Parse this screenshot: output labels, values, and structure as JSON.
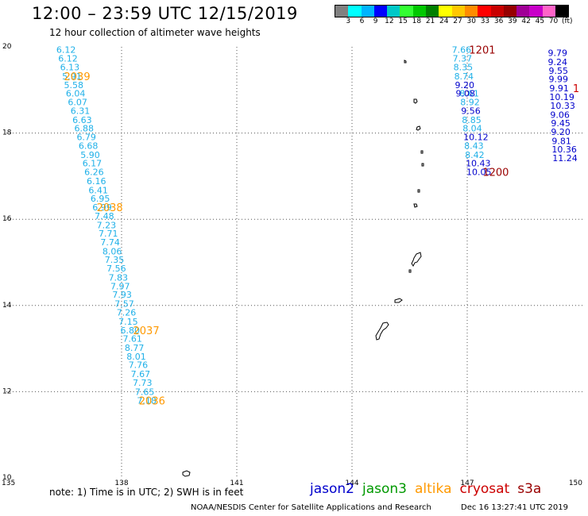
{
  "header": {
    "title": "12:00 – 23:59 UTC 12/15/2019",
    "subtitle": "12 hour collection of altimeter wave heights"
  },
  "legend": {
    "colors": [
      "#808080",
      "#00ffff",
      "#00b4ff",
      "#0000ff",
      "#00c8c8",
      "#32ff32",
      "#00c800",
      "#008000",
      "#ffff00",
      "#ffc800",
      "#ff8c00",
      "#ff0000",
      "#c80000",
      "#960000",
      "#a00096",
      "#c800c8",
      "#ff64c8",
      "#000000"
    ],
    "labels": [
      "3",
      "6",
      "9",
      "12",
      "15",
      "18",
      "21",
      "24",
      "27",
      "30",
      "33",
      "36",
      "39",
      "42",
      "45",
      "70",
      "(ft)"
    ]
  },
  "footer": {
    "note": "note: 1) Time is in UTC; 2) SWH is in feet",
    "satellites": [
      {
        "name": "jason2",
        "color": "#0000cc"
      },
      {
        "name": "jason3",
        "color": "#009900"
      },
      {
        "name": "altika",
        "color": "#ff9900"
      },
      {
        "name": "cryosat",
        "color": "#cc0000"
      },
      {
        "name": "s3a",
        "color": "#990000"
      }
    ],
    "credit": "NOAA/NESDIS Center for Satellite Applications and Research",
    "timestamp": "Dec 16 13:27:41 UTC 2019"
  },
  "chart_data": {
    "type": "scatter",
    "x_ticks": [
      "135",
      "138",
      "141",
      "144",
      "147",
      "150"
    ],
    "y_ticks": [
      "10",
      "12",
      "14",
      "16",
      "18",
      "20"
    ],
    "xlim": [
      135,
      150
    ],
    "ylim": [
      10,
      20
    ],
    "grid": true,
    "series": [
      {
        "color": "#1fb0e8",
        "points": [
          {
            "x": 136.3,
            "y": 19.94,
            "label": "6.12"
          },
          {
            "x": 136.35,
            "y": 19.73,
            "label": "6.12"
          },
          {
            "x": 136.4,
            "y": 19.53,
            "label": "6.13"
          },
          {
            "x": 136.45,
            "y": 19.32,
            "label": "5.91"
          },
          {
            "x": 136.5,
            "y": 19.12,
            "label": "5.58"
          },
          {
            "x": 136.55,
            "y": 18.92,
            "label": "6.04"
          },
          {
            "x": 136.6,
            "y": 18.72,
            "label": "6.07"
          },
          {
            "x": 136.67,
            "y": 18.52,
            "label": "6.31"
          },
          {
            "x": 136.72,
            "y": 18.31,
            "label": "6.63"
          },
          {
            "x": 136.77,
            "y": 18.11,
            "label": "6.88"
          },
          {
            "x": 136.83,
            "y": 17.91,
            "label": "6.79"
          },
          {
            "x": 136.88,
            "y": 17.71,
            "label": "6.68"
          },
          {
            "x": 136.93,
            "y": 17.5,
            "label": "5.90"
          },
          {
            "x": 136.98,
            "y": 17.3,
            "label": "6.17"
          },
          {
            "x": 137.03,
            "y": 17.1,
            "label": "6.26"
          },
          {
            "x": 137.09,
            "y": 16.89,
            "label": "6.16"
          },
          {
            "x": 137.14,
            "y": 16.68,
            "label": "6.41"
          },
          {
            "x": 137.19,
            "y": 16.48,
            "label": "6.95"
          },
          {
            "x": 137.24,
            "y": 16.28,
            "label": "6.99"
          },
          {
            "x": 137.3,
            "y": 16.08,
            "label": "7.48"
          },
          {
            "x": 137.35,
            "y": 15.87,
            "label": "7.23"
          },
          {
            "x": 137.4,
            "y": 15.67,
            "label": "7.71"
          },
          {
            "x": 137.45,
            "y": 15.47,
            "label": "7.74"
          },
          {
            "x": 137.5,
            "y": 15.26,
            "label": "8.06"
          },
          {
            "x": 137.56,
            "y": 15.06,
            "label": "7.35"
          },
          {
            "x": 137.61,
            "y": 14.86,
            "label": "7.56"
          },
          {
            "x": 137.66,
            "y": 14.65,
            "label": "7.83"
          },
          {
            "x": 137.71,
            "y": 14.45,
            "label": "7.97"
          },
          {
            "x": 137.76,
            "y": 14.25,
            "label": "7.93"
          },
          {
            "x": 137.82,
            "y": 14.04,
            "label": "7.57"
          },
          {
            "x": 137.87,
            "y": 13.84,
            "label": "7.26"
          },
          {
            "x": 137.92,
            "y": 13.63,
            "label": "7.15"
          },
          {
            "x": 137.97,
            "y": 13.43,
            "label": "6.80"
          },
          {
            "x": 138.03,
            "y": 13.23,
            "label": "7.61"
          },
          {
            "x": 138.08,
            "y": 13.02,
            "label": "8.77"
          },
          {
            "x": 138.13,
            "y": 12.82,
            "label": "8.01"
          },
          {
            "x": 138.18,
            "y": 12.62,
            "label": "7.76"
          },
          {
            "x": 138.24,
            "y": 12.41,
            "label": "7.67"
          },
          {
            "x": 138.29,
            "y": 12.21,
            "label": "7.73"
          },
          {
            "x": 138.35,
            "y": 12.0,
            "label": "7.65"
          },
          {
            "x": 138.4,
            "y": 11.8,
            "label": "7.18"
          }
        ]
      },
      {
        "color": "#1fb0e8",
        "points": [
          {
            "x": 146.6,
            "y": 19.94,
            "label": "7.66"
          },
          {
            "x": 146.62,
            "y": 19.73,
            "label": "7.37"
          },
          {
            "x": 146.64,
            "y": 19.53,
            "label": "8.35"
          },
          {
            "x": 146.66,
            "y": 19.32,
            "label": "8.74"
          },
          {
            "x": 146.8,
            "y": 18.92,
            "label": "8.61"
          },
          {
            "x": 146.82,
            "y": 18.72,
            "label": "8.92"
          },
          {
            "x": 146.86,
            "y": 18.31,
            "label": "8.85"
          },
          {
            "x": 146.88,
            "y": 18.11,
            "label": "8.04"
          },
          {
            "x": 146.92,
            "y": 17.71,
            "label": "8.43"
          },
          {
            "x": 146.94,
            "y": 17.5,
            "label": "8.42"
          }
        ]
      },
      {
        "color": "#0000cc",
        "points": [
          {
            "x": 146.68,
            "y": 19.12,
            "label": "9.20"
          },
          {
            "x": 146.7,
            "y": 18.92,
            "label": "9.08"
          },
          {
            "x": 146.84,
            "y": 18.52,
            "label": "9.56"
          },
          {
            "x": 146.9,
            "y": 17.91,
            "label": "10.12"
          },
          {
            "x": 146.96,
            "y": 17.3,
            "label": "10.43"
          },
          {
            "x": 146.98,
            "y": 17.1,
            "label": "10.05"
          }
        ]
      },
      {
        "color": "#0000cc",
        "points": [
          {
            "x": 149.1,
            "y": 19.86,
            "label": "9.79"
          },
          {
            "x": 149.1,
            "y": 19.65,
            "label": "9.24"
          },
          {
            "x": 149.12,
            "y": 19.45,
            "label": "9.55"
          },
          {
            "x": 149.12,
            "y": 19.25,
            "label": "9.99"
          },
          {
            "x": 149.14,
            "y": 19.04,
            "label": "9.91"
          },
          {
            "x": 149.14,
            "y": 18.84,
            "label": "10.19"
          },
          {
            "x": 149.16,
            "y": 18.64,
            "label": "10.33"
          },
          {
            "x": 149.16,
            "y": 18.43,
            "label": "9.06"
          },
          {
            "x": 149.18,
            "y": 18.23,
            "label": "9.45"
          },
          {
            "x": 149.18,
            "y": 18.03,
            "label": "9.20"
          },
          {
            "x": 149.2,
            "y": 17.82,
            "label": "9.81"
          },
          {
            "x": 149.2,
            "y": 17.62,
            "label": "10.36"
          },
          {
            "x": 149.22,
            "y": 17.42,
            "label": "11.24"
          }
        ]
      }
    ],
    "annotations": [
      {
        "x": 136.5,
        "y": 19.32,
        "text": "2039",
        "color": "#ff9900"
      },
      {
        "x": 137.35,
        "y": 16.28,
        "text": "2038",
        "color": "#ff9900"
      },
      {
        "x": 138.3,
        "y": 13.43,
        "text": "2037",
        "color": "#ff9900"
      },
      {
        "x": 138.45,
        "y": 11.8,
        "text": "2036",
        "color": "#ff9900"
      },
      {
        "x": 147.05,
        "y": 19.94,
        "text": "1201",
        "color": "#990000"
      },
      {
        "x": 147.4,
        "y": 17.1,
        "text": "1200",
        "color": "#990000"
      },
      {
        "x": 149.75,
        "y": 19.04,
        "text": "1",
        "color": "#cc0000"
      }
    ]
  }
}
